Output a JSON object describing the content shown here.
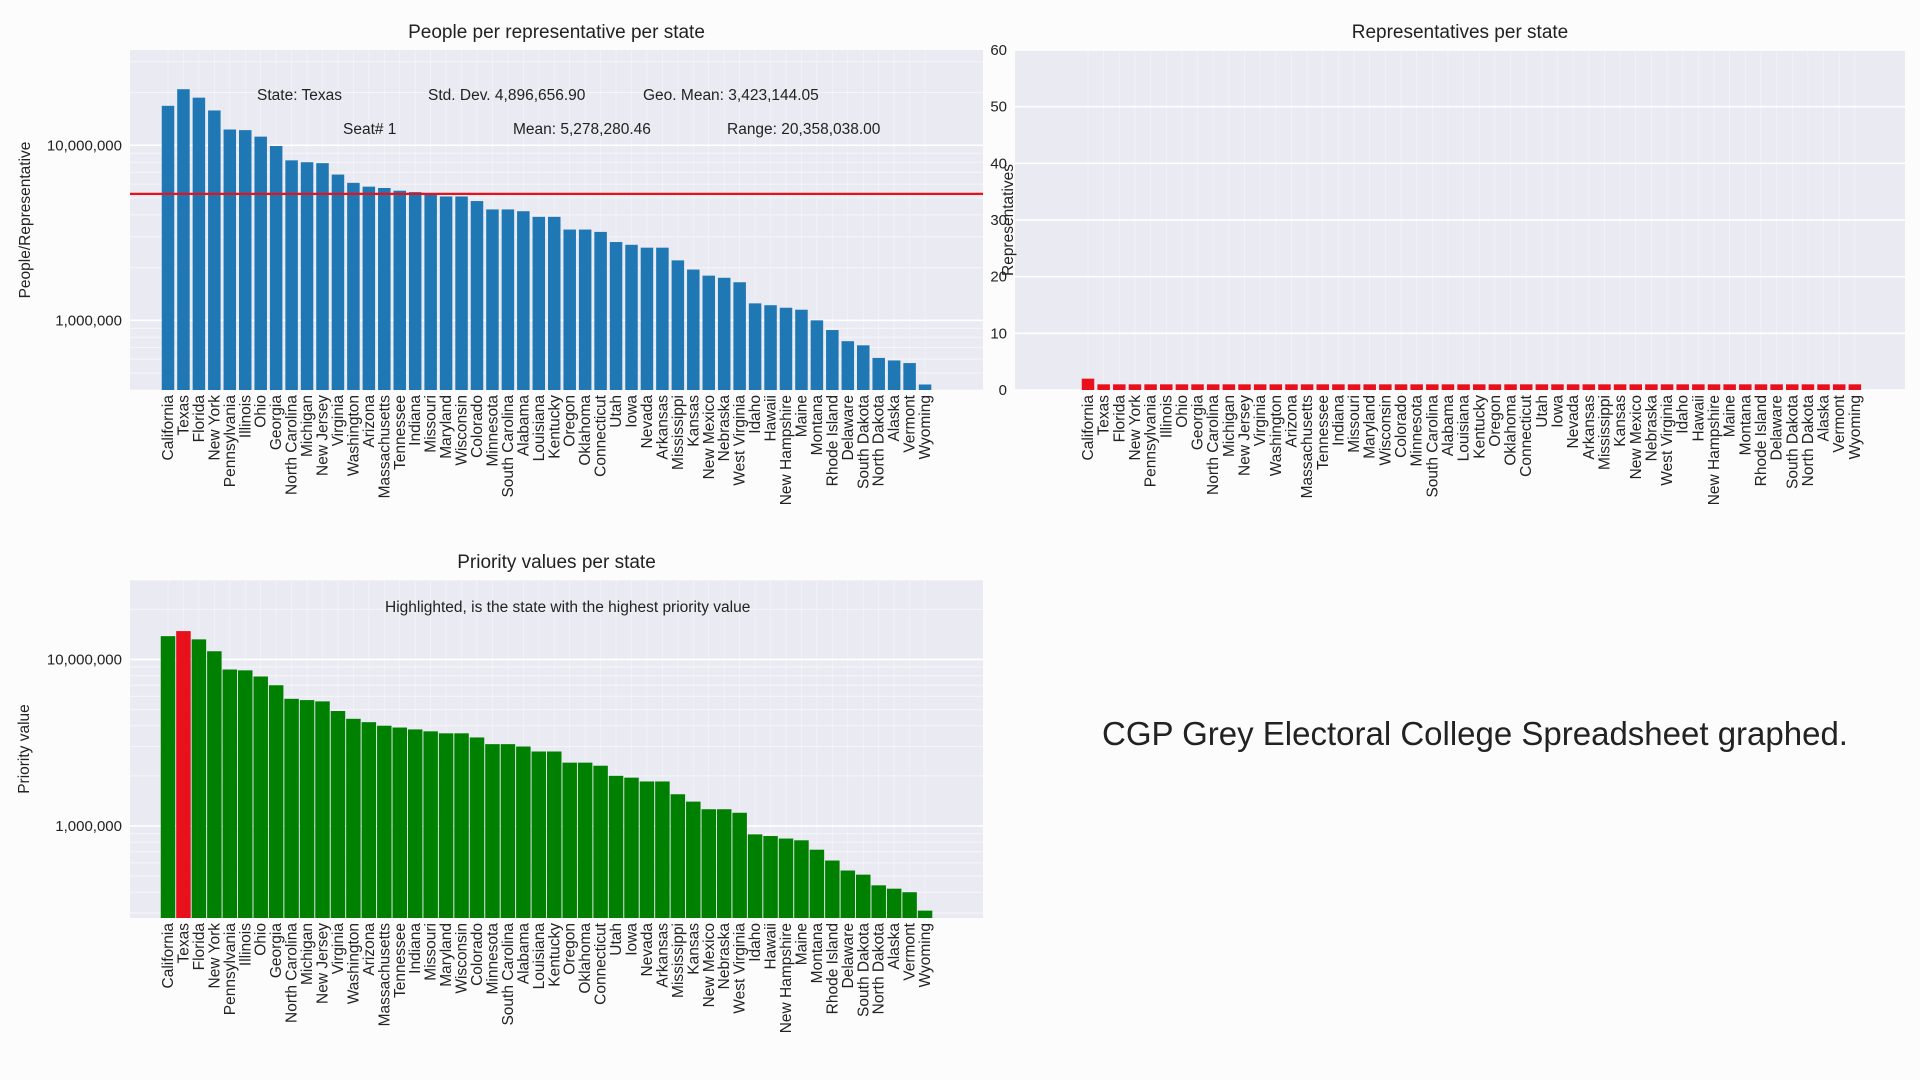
{
  "colors": {
    "plot_bg": "#eaeaf2",
    "grid_major": "#ffffff",
    "grid_minor": "#f5f5fa",
    "blue": "#1f77b4",
    "green": "#008000",
    "red": "#e8101a",
    "text": "#222222"
  },
  "caption": "CGP Grey Electoral College Spreadsheet graphed.",
  "chart_data": [
    {
      "id": "people-per-rep",
      "type": "bar",
      "title": "People per representative per state",
      "xlabel": "",
      "ylabel": "People/Representative",
      "yscale": "log",
      "ylim": [
        400000,
        35000000
      ],
      "yticks": [
        1000000,
        10000000
      ],
      "ytick_labels": [
        "1,000,000",
        "10,000,000"
      ],
      "color": "#1f77b4",
      "reference_line": {
        "value": 5278280.46,
        "color": "#e8101a"
      },
      "annotations": [
        "State: Texas",
        "Std. Dev. 4,896,656.90",
        "Geo. Mean: 3,423,144.05",
        "Seat# 1",
        "Mean: 5,278,280.46",
        "Range: 20,358,038.00"
      ],
      "categories": [
        "California",
        "Texas",
        "Florida",
        "New York",
        "Pennsylvania",
        "Illinois",
        "Ohio",
        "Georgia",
        "North Carolina",
        "Michigan",
        "New Jersey",
        "Virginia",
        "Washington",
        "Arizona",
        "Massachusetts",
        "Tennessee",
        "Indiana",
        "Missouri",
        "Maryland",
        "Wisconsin",
        "Colorado",
        "Minnesota",
        "South Carolina",
        "Alabama",
        "Louisiana",
        "Kentucky",
        "Oregon",
        "Oklahoma",
        "Connecticut",
        "Utah",
        "Iowa",
        "Nevada",
        "Arkansas",
        "Mississippi",
        "Kansas",
        "New Mexico",
        "Nebraska",
        "West Virginia",
        "Idaho",
        "Hawaii",
        "New Hampshire",
        "Maine",
        "Montana",
        "Rhode Island",
        "Delaware",
        "South Dakota",
        "North Dakota",
        "Alaska",
        "Vermont",
        "Wyoming"
      ],
      "values": [
        16800000,
        20900000,
        18700000,
        15800000,
        12300000,
        12200000,
        11200000,
        9900000,
        8200000,
        8000000,
        7900000,
        6800000,
        6100000,
        5800000,
        5700000,
        5500000,
        5400000,
        5200000,
        5100000,
        5100000,
        4800000,
        4300000,
        4300000,
        4200000,
        3900000,
        3900000,
        3300000,
        3300000,
        3200000,
        2800000,
        2700000,
        2600000,
        2600000,
        2200000,
        1950000,
        1800000,
        1750000,
        1650000,
        1250000,
        1220000,
        1180000,
        1150000,
        1000000,
        880000,
        760000,
        720000,
        610000,
        590000,
        570000,
        430000
      ]
    },
    {
      "id": "reps-per-state",
      "type": "bar",
      "title": "Representatives per state",
      "xlabel": "",
      "ylabel": "Representatives",
      "yscale": "linear",
      "ylim": [
        0,
        60
      ],
      "yticks": [
        0,
        10,
        20,
        30,
        40,
        50,
        60
      ],
      "ytick_labels": [
        "0",
        "10",
        "20",
        "30",
        "40",
        "50",
        "60"
      ],
      "color": "#e8101a",
      "categories": [
        "California",
        "Texas",
        "Florida",
        "New York",
        "Pennsylvania",
        "Illinois",
        "Ohio",
        "Georgia",
        "North Carolina",
        "Michigan",
        "New Jersey",
        "Virginia",
        "Washington",
        "Arizona",
        "Massachusetts",
        "Tennessee",
        "Indiana",
        "Missouri",
        "Maryland",
        "Wisconsin",
        "Colorado",
        "Minnesota",
        "South Carolina",
        "Alabama",
        "Louisiana",
        "Kentucky",
        "Oregon",
        "Oklahoma",
        "Connecticut",
        "Utah",
        "Iowa",
        "Nevada",
        "Arkansas",
        "Mississippi",
        "Kansas",
        "New Mexico",
        "Nebraska",
        "West Virginia",
        "Idaho",
        "Hawaii",
        "New Hampshire",
        "Maine",
        "Montana",
        "Rhode Island",
        "Delaware",
        "South Dakota",
        "North Dakota",
        "Alaska",
        "Vermont",
        "Wyoming"
      ],
      "values": [
        2,
        1,
        1,
        1,
        1,
        1,
        1,
        1,
        1,
        1,
        1,
        1,
        1,
        1,
        1,
        1,
        1,
        1,
        1,
        1,
        1,
        1,
        1,
        1,
        1,
        1,
        1,
        1,
        1,
        1,
        1,
        1,
        1,
        1,
        1,
        1,
        1,
        1,
        1,
        1,
        1,
        1,
        1,
        1,
        1,
        1,
        1,
        1,
        1,
        1
      ]
    },
    {
      "id": "priority-values",
      "type": "bar",
      "title": "Priority values per state",
      "xlabel": "",
      "ylabel": "Priority value",
      "yscale": "log",
      "ylim": [
        280000,
        30000000
      ],
      "yticks": [
        1000000,
        10000000
      ],
      "ytick_labels": [
        "1,000,000",
        "10,000,000"
      ],
      "color": "#008000",
      "highlight_color": "#e8101a",
      "highlight_index": 1,
      "annotations": [
        "Highlighted, is the state with the highest priority value"
      ],
      "categories": [
        "California",
        "Texas",
        "Florida",
        "New York",
        "Pennsylvania",
        "Illinois",
        "Ohio",
        "Georgia",
        "North Carolina",
        "Michigan",
        "New Jersey",
        "Virginia",
        "Washington",
        "Arizona",
        "Massachusetts",
        "Tennessee",
        "Indiana",
        "Missouri",
        "Maryland",
        "Wisconsin",
        "Colorado",
        "Minnesota",
        "South Carolina",
        "Alabama",
        "Louisiana",
        "Kentucky",
        "Oregon",
        "Oklahoma",
        "Connecticut",
        "Utah",
        "Iowa",
        "Nevada",
        "Arkansas",
        "Mississippi",
        "Kansas",
        "New Mexico",
        "Nebraska",
        "West Virginia",
        "Idaho",
        "Hawaii",
        "New Hampshire",
        "Maine",
        "Montana",
        "Rhode Island",
        "Delaware",
        "South Dakota",
        "North Dakota",
        "Alaska",
        "Vermont",
        "Wyoming"
      ],
      "values": [
        13800000,
        14800000,
        13200000,
        11200000,
        8700000,
        8600000,
        7900000,
        7000000,
        5800000,
        5700000,
        5600000,
        4900000,
        4400000,
        4200000,
        4000000,
        3900000,
        3800000,
        3700000,
        3600000,
        3600000,
        3400000,
        3100000,
        3100000,
        3000000,
        2800000,
        2800000,
        2400000,
        2400000,
        2300000,
        2000000,
        1950000,
        1850000,
        1850000,
        1550000,
        1400000,
        1260000,
        1260000,
        1200000,
        890000,
        870000,
        840000,
        820000,
        720000,
        620000,
        540000,
        510000,
        440000,
        420000,
        400000,
        310000
      ]
    }
  ]
}
